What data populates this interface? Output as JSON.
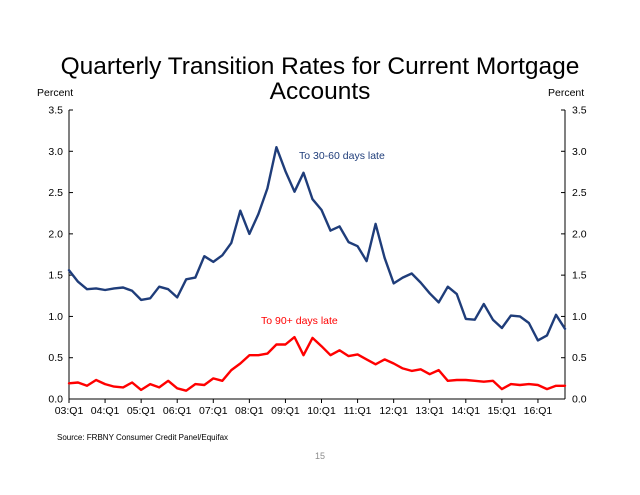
{
  "slide": {
    "title_line1": "Quarterly Transition Rates for Current Mortgage",
    "title_line2": "Accounts",
    "left_unit": "Percent",
    "right_unit": "Percent",
    "source": "Source: FRBNY Consumer Credit Panel/Equifax",
    "page_number": "15"
  },
  "chart_data": {
    "type": "line",
    "title": "Quarterly Transition Rates for Current Mortgage Accounts",
    "ylabel": "Percent",
    "ylim": [
      0,
      3.5
    ],
    "yticks": [
      "0.0",
      "0.5",
      "1.0",
      "1.5",
      "2.0",
      "2.5",
      "3.0",
      "3.5"
    ],
    "xtick_labels": [
      "03:Q1",
      "04:Q1",
      "05:Q1",
      "06:Q1",
      "07:Q1",
      "08:Q1",
      "09:Q1",
      "10:Q1",
      "11:Q1",
      "12:Q1",
      "13:Q1",
      "14:Q1",
      "15:Q1",
      "16:Q1"
    ],
    "x": [
      "03:Q1",
      "03:Q2",
      "03:Q3",
      "03:Q4",
      "04:Q1",
      "04:Q2",
      "04:Q3",
      "04:Q4",
      "05:Q1",
      "05:Q2",
      "05:Q3",
      "05:Q4",
      "06:Q1",
      "06:Q2",
      "06:Q3",
      "06:Q4",
      "07:Q1",
      "07:Q2",
      "07:Q3",
      "07:Q4",
      "08:Q1",
      "08:Q2",
      "08:Q3",
      "08:Q4",
      "09:Q1",
      "09:Q2",
      "09:Q3",
      "09:Q4",
      "10:Q1",
      "10:Q2",
      "10:Q3",
      "10:Q4",
      "11:Q1",
      "11:Q2",
      "11:Q3",
      "11:Q4",
      "12:Q1",
      "12:Q2",
      "12:Q3",
      "12:Q4",
      "13:Q1",
      "13:Q2",
      "13:Q3",
      "13:Q4",
      "14:Q1",
      "14:Q2",
      "14:Q3",
      "14:Q4",
      "15:Q1",
      "15:Q2",
      "15:Q3",
      "15:Q4",
      "16:Q1",
      "16:Q2",
      "16:Q3",
      "16:Q4"
    ],
    "series": [
      {
        "name": "To 30-60 days late",
        "color": "#1f3d7a",
        "values": [
          1.56,
          1.42,
          1.33,
          1.34,
          1.32,
          1.34,
          1.35,
          1.31,
          1.2,
          1.22,
          1.36,
          1.33,
          1.23,
          1.45,
          1.47,
          1.73,
          1.66,
          1.74,
          1.89,
          2.28,
          2.0,
          2.24,
          2.55,
          3.05,
          2.76,
          2.51,
          2.74,
          2.42,
          2.29,
          2.04,
          2.09,
          1.9,
          1.85,
          1.67,
          2.12,
          1.71,
          1.4,
          1.47,
          1.52,
          1.41,
          1.28,
          1.17,
          1.36,
          1.27,
          0.97,
          0.96,
          1.15,
          0.96,
          0.86,
          1.01,
          1.0,
          0.92,
          0.71,
          0.77,
          1.02,
          0.85
        ]
      },
      {
        "name": "To 90+ days late",
        "color": "#ff0000",
        "values": [
          0.19,
          0.2,
          0.16,
          0.23,
          0.18,
          0.15,
          0.14,
          0.2,
          0.11,
          0.18,
          0.14,
          0.22,
          0.13,
          0.1,
          0.18,
          0.17,
          0.25,
          0.22,
          0.35,
          0.43,
          0.53,
          0.53,
          0.55,
          0.66,
          0.66,
          0.75,
          0.53,
          0.74,
          0.64,
          0.53,
          0.59,
          0.52,
          0.54,
          0.48,
          0.42,
          0.48,
          0.43,
          0.37,
          0.34,
          0.36,
          0.3,
          0.35,
          0.22,
          0.23,
          0.23,
          0.22,
          0.21,
          0.22,
          0.12,
          0.18,
          0.17,
          0.18,
          0.17,
          0.12,
          0.16,
          0.16
        ]
      }
    ],
    "annotations": [
      {
        "text": "To 30-60 days late",
        "color": "#1f3d7a"
      },
      {
        "text": "To 90+ days late",
        "color": "#ff0000"
      }
    ],
    "grid": false
  }
}
